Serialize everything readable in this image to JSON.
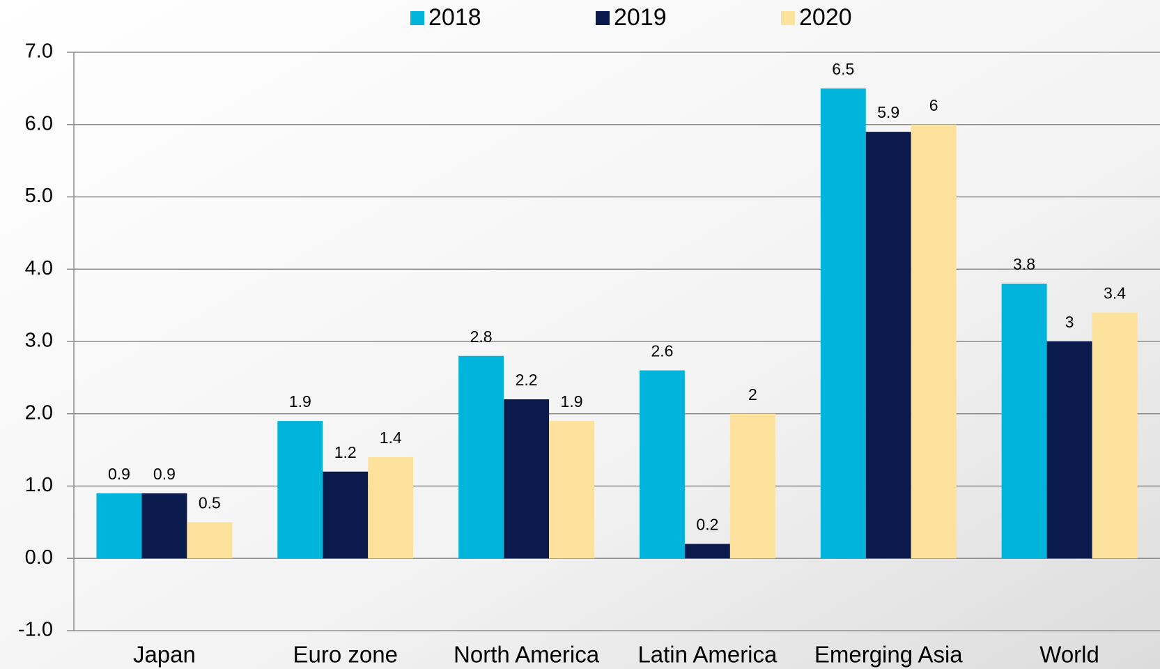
{
  "chart_data": {
    "type": "bar",
    "categories": [
      "Japan",
      "Euro zone",
      "North America",
      "Latin America",
      "Emerging Asia",
      "World"
    ],
    "series": [
      {
        "name": "2018",
        "color": "#00b4dc",
        "values": [
          0.9,
          1.9,
          2.8,
          2.6,
          6.5,
          3.8
        ]
      },
      {
        "name": "2019",
        "color": "#0a1a4c",
        "values": [
          0.9,
          1.2,
          2.2,
          0.2,
          5.9,
          3
        ]
      },
      {
        "name": "2020",
        "color": "#fde29e",
        "values": [
          0.5,
          1.4,
          1.9,
          2,
          6,
          3.4
        ]
      }
    ],
    "ylim": [
      -1,
      7
    ],
    "yticks": [
      {
        "value": -1,
        "label": "-1.0"
      },
      {
        "value": 0,
        "label": "0.0"
      },
      {
        "value": 1,
        "label": "1.0"
      },
      {
        "value": 2,
        "label": "2.0"
      },
      {
        "value": 3,
        "label": "3.0"
      },
      {
        "value": 4,
        "label": "4.0"
      },
      {
        "value": 5,
        "label": "5.0"
      },
      {
        "value": 6,
        "label": "6.0"
      },
      {
        "value": 7,
        "label": "7.0"
      }
    ],
    "grid": true,
    "legend": "top"
  }
}
